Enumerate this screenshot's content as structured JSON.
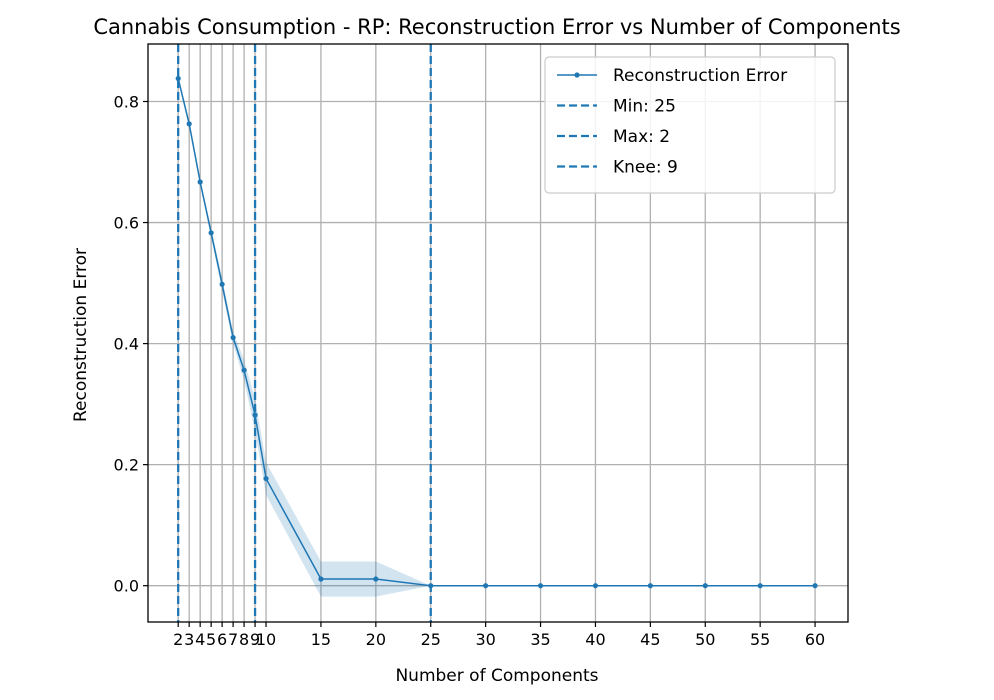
{
  "chart_data": {
    "type": "line",
    "title": "Cannabis Consumption - RP: Reconstruction Error vs Number of Components",
    "xlabel": "Number of Components",
    "ylabel": "Reconstruction Error",
    "xlim": [
      -0.75,
      63
    ],
    "ylim": [
      -0.06,
      0.895
    ],
    "x_ticks": [
      2,
      3,
      4,
      5,
      6,
      7,
      8,
      9,
      10,
      15,
      20,
      25,
      30,
      35,
      40,
      45,
      50,
      55,
      60
    ],
    "x_tick_labels": [
      "2",
      "3",
      "4",
      "5",
      "6",
      "7",
      "8",
      "9",
      "10",
      "15",
      "20",
      "25",
      "30",
      "35",
      "40",
      "45",
      "50",
      "55",
      "60"
    ],
    "y_ticks": [
      0.0,
      0.2,
      0.4,
      0.6,
      0.8
    ],
    "y_tick_labels": [
      "0.0",
      "0.2",
      "0.4",
      "0.6",
      "0.8"
    ],
    "grid": true,
    "legend_position": "top-right",
    "series": [
      {
        "name": "Reconstruction Error",
        "color": "#1f77b4",
        "x": [
          2,
          3,
          4,
          5,
          6,
          7,
          8,
          9,
          10,
          15,
          20,
          25,
          30,
          35,
          40,
          45,
          50,
          55,
          60
        ],
        "y": [
          0.838,
          0.763,
          0.667,
          0.583,
          0.498,
          0.41,
          0.356,
          0.282,
          0.177,
          0.011,
          0.011,
          0.0,
          0.0,
          0.0,
          0.0,
          0.0,
          0.0,
          0.0,
          0.0
        ],
        "band_lower": [
          0.833,
          0.758,
          0.662,
          0.575,
          0.487,
          0.4,
          0.339,
          0.255,
          0.15,
          -0.018,
          -0.018,
          0.0,
          0.0,
          0.0,
          0.0,
          0.0,
          0.0,
          0.0,
          0.0
        ],
        "band_upper": [
          0.843,
          0.768,
          0.672,
          0.591,
          0.509,
          0.42,
          0.373,
          0.309,
          0.204,
          0.04,
          0.04,
          0.0,
          0.0,
          0.0,
          0.0,
          0.0,
          0.0,
          0.0,
          0.0
        ]
      }
    ],
    "vlines": [
      {
        "label": "Min: 25",
        "x": 25,
        "color": "#1f77b4"
      },
      {
        "label": "Max: 2",
        "x": 2,
        "color": "#1f77b4"
      },
      {
        "label": "Knee: 9",
        "x": 9,
        "color": "#1f77b4"
      }
    ]
  }
}
